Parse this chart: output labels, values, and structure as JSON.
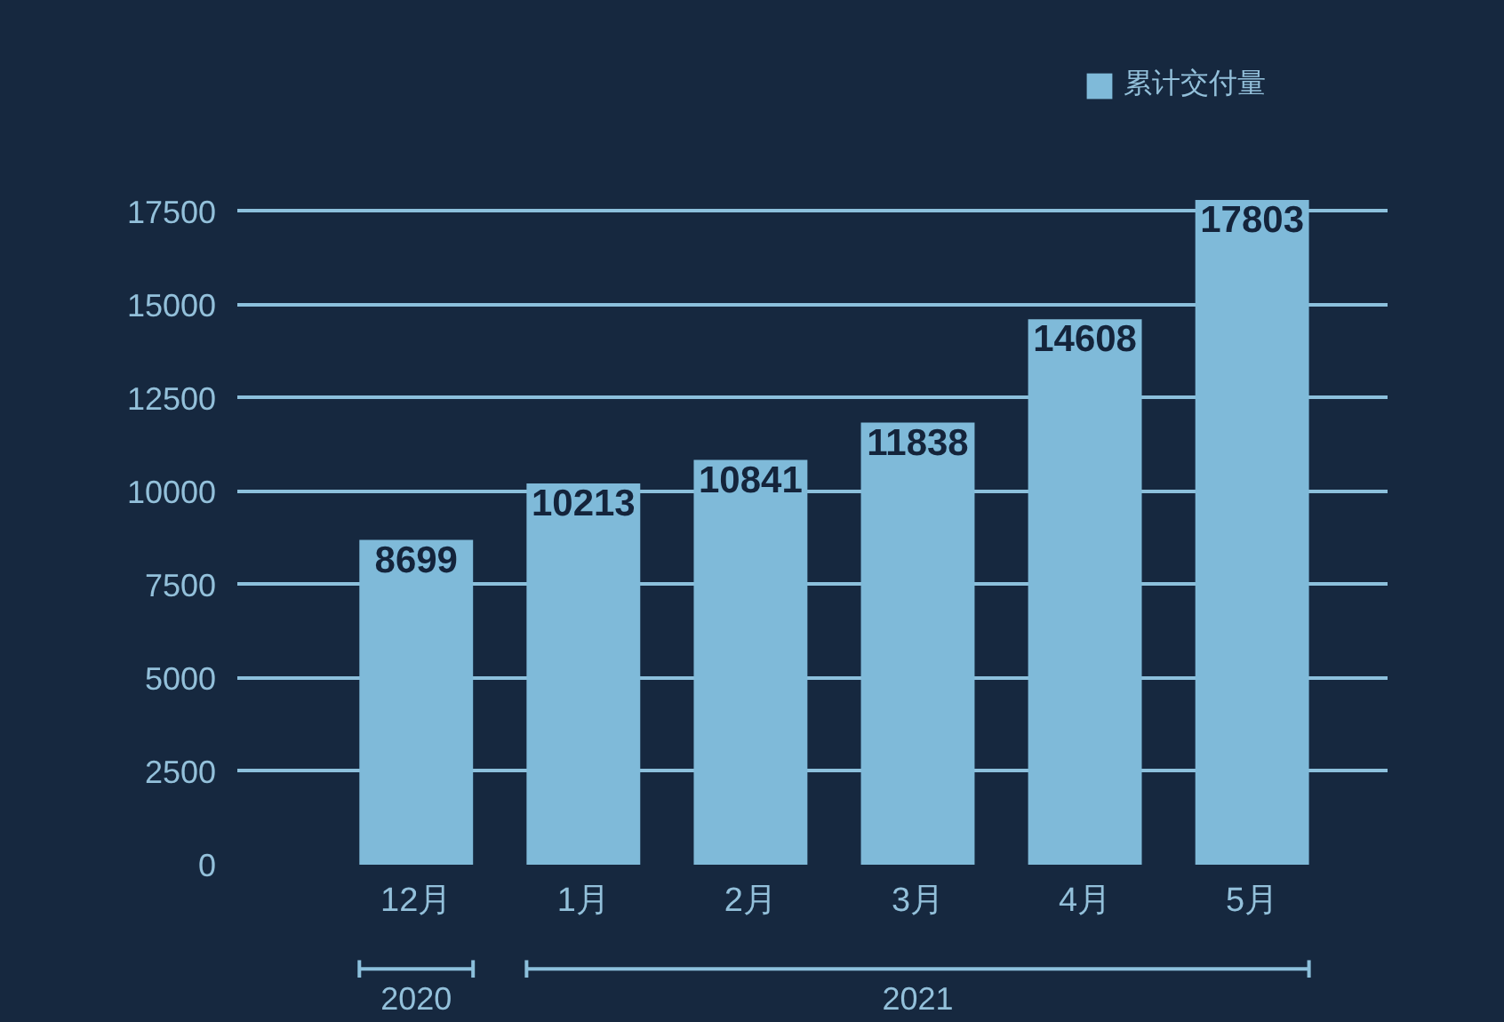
{
  "chart_data": {
    "type": "bar",
    "categories": [
      "12月",
      "1月",
      "2月",
      "3月",
      "4月",
      "5月"
    ],
    "series": [
      {
        "name": "累计交付量",
        "color": "#7fbad9",
        "values": [
          8699,
          10213,
          10841,
          11838,
          14608,
          17803
        ]
      }
    ],
    "ylim": [
      0,
      17803
    ],
    "yticks": [
      0,
      2500,
      5000,
      7500,
      10000,
      12500,
      15000,
      17500
    ],
    "grid": "y",
    "legend": "top right",
    "data_labels": true,
    "annotations": [
      "2020",
      "2021"
    ]
  }
}
